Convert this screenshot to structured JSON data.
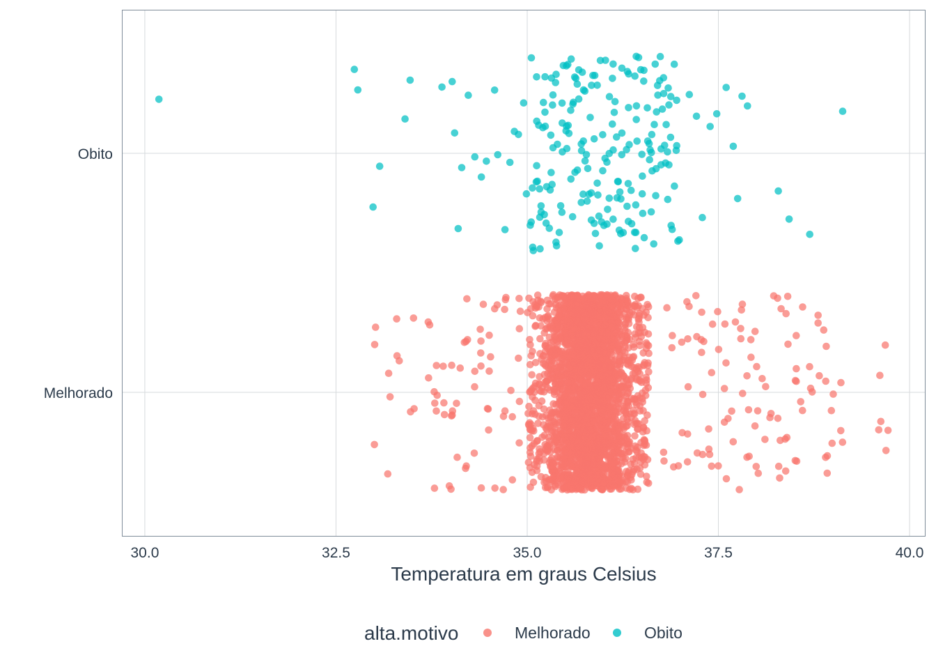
{
  "chart_data": {
    "type": "scatter",
    "jitter": true,
    "xlabel": "Temperatura em graus Celsius",
    "ylabel": "",
    "xlim": [
      29.7,
      40.2
    ],
    "x_ticks": [
      30.0,
      32.5,
      35.0,
      37.5,
      40.0
    ],
    "x_tick_labels": [
      "30.0",
      "32.5",
      "35.0",
      "37.5",
      "40.0"
    ],
    "categories": [
      "Melhorado",
      "Obito"
    ],
    "grid": true,
    "legend": {
      "title": "alta.motivo",
      "position": "bottom"
    },
    "series": [
      {
        "name": "Melhorado",
        "color": "#F8766D",
        "core_range": [
          35.0,
          36.6
        ],
        "approx_count": 3000,
        "values": [
          33.0,
          33.2,
          33.3,
          33.5,
          33.8,
          33.7,
          33.9,
          34.0,
          34.1,
          34.2,
          34.3,
          34.4,
          34.5,
          34.6,
          34.7,
          34.8,
          34.9,
          34.5,
          34.2,
          34.0,
          33.8,
          34.4,
          34.7,
          34.9,
          36.8,
          36.9,
          37.0,
          37.1,
          37.2,
          37.3,
          37.4,
          37.5,
          37.6,
          37.7,
          37.8,
          37.9,
          38.0,
          38.1,
          38.2,
          38.3,
          38.4,
          38.5,
          38.6,
          38.7,
          38.8,
          38.9,
          39.0,
          39.1,
          39.6,
          39.7,
          37.3,
          37.6,
          37.9,
          38.3,
          38.5,
          38.9,
          37.1,
          37.4,
          37.8,
          38.0,
          38.4
        ]
      },
      {
        "name": "Obito",
        "color": "#00BFC4",
        "values": [
          30.2,
          32.75,
          32.8,
          33.0,
          33.05,
          33.4,
          33.45,
          33.9,
          34.0,
          34.05,
          34.1,
          34.15,
          34.25,
          34.3,
          34.4,
          34.45,
          34.55,
          34.6,
          34.7,
          34.75,
          34.85,
          34.9,
          34.95,
          35.0,
          35.05,
          35.1,
          35.15,
          35.2,
          35.25,
          35.3,
          35.35,
          35.4,
          35.45,
          35.5,
          35.55,
          35.6,
          35.65,
          35.7,
          35.75,
          35.8,
          35.85,
          35.9,
          35.95,
          36.0,
          36.05,
          36.1,
          36.15,
          36.2,
          36.25,
          36.3,
          36.35,
          36.4,
          36.45,
          36.5,
          36.55,
          36.6,
          36.65,
          36.7,
          36.75,
          36.8,
          36.85,
          36.9,
          36.95,
          37.0,
          37.1,
          37.2,
          37.3,
          37.4,
          37.5,
          37.6,
          37.7,
          37.75,
          37.8,
          37.9,
          38.3,
          38.4,
          38.7,
          39.1
        ]
      }
    ]
  }
}
